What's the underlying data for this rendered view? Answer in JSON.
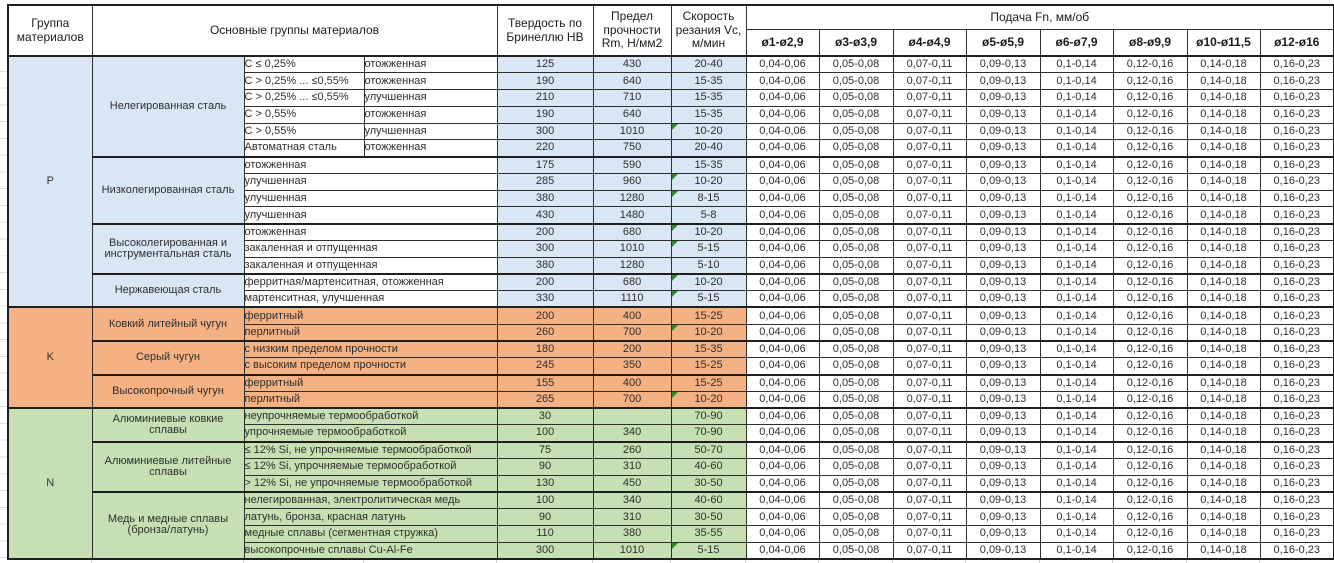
{
  "table": {
    "headers": {
      "group": "Группа материалов",
      "main_groups": "Основные группы материалов",
      "hardness": "Твердость по Бринеллю HB",
      "strength": "Предел прочности Rm, Н/мм2",
      "speed": "Скорость резания Vc, м/мин",
      "feed": "Подача Fn, мм/об",
      "feed_diameters": [
        "ø1-ø2,9",
        "ø3-ø3,9",
        "ø4-ø4,9",
        "ø5-ø5,9",
        "ø6-ø7,9",
        "ø8-ø9,9",
        "ø10-ø11,5",
        "ø12-ø16"
      ]
    },
    "feed_values": [
      "0,04-0,06",
      "0,05-0,08",
      "0,07-0,11",
      "0,09-0,13",
      "0,1-0,14",
      "0,12-0,16",
      "0,14-0,18",
      "0,16-0,23"
    ],
    "colors": {
      "group_p_fill": "#D9E7F5",
      "group_k_fill": "#F4B183",
      "group_n_fill": "#C6E0B4",
      "marker_green": "#2D8A2D",
      "white": "#FFFFFF"
    },
    "groups": [
      {
        "code": "P",
        "fill": "#D9E7F5",
        "white_condition_cells": true,
        "subgroups": [
          {
            "name": "Нелегированная сталь",
            "rows": [
              {
                "condition": [
                  "C ≤ 0,25%",
                  "отожженная"
                ],
                "hb": "125",
                "rm": "430",
                "vc": "20-40",
                "marker": false
              },
              {
                "condition": [
                  "C > 0,25% ... ≤0,55%",
                  "отожженная"
                ],
                "hb": "190",
                "rm": "640",
                "vc": "15-35",
                "marker": false
              },
              {
                "condition": [
                  "C > 0,25% ... ≤0,55%",
                  "улучшенная"
                ],
                "hb": "210",
                "rm": "710",
                "vc": "15-35",
                "marker": false
              },
              {
                "condition": [
                  "C > 0,55%",
                  "отожженная"
                ],
                "hb": "190",
                "rm": "640",
                "vc": "15-35",
                "marker": false
              },
              {
                "condition": [
                  "C > 0,55%",
                  "улучшенная"
                ],
                "hb": "300",
                "rm": "1010",
                "vc": "10-20",
                "marker": true
              },
              {
                "condition": [
                  "Автоматная сталь",
                  "отожженная"
                ],
                "hb": "220",
                "rm": "750",
                "vc": "20-40",
                "marker": false
              }
            ]
          },
          {
            "name": "Низколегированная сталь",
            "rows": [
              {
                "condition": [
                  "отожженная"
                ],
                "hb": "175",
                "rm": "590",
                "vc": "15-35",
                "marker": false
              },
              {
                "condition": [
                  "улучшенная"
                ],
                "hb": "285",
                "rm": "960",
                "vc": "10-20",
                "marker": true
              },
              {
                "condition": [
                  "улучшенная"
                ],
                "hb": "380",
                "rm": "1280",
                "vc": "8-15",
                "marker": true
              },
              {
                "condition": [
                  "улучшенная"
                ],
                "hb": "430",
                "rm": "1480",
                "vc": "5-8",
                "marker": false
              }
            ]
          },
          {
            "name": "Высоколегированная и инструментальная сталь",
            "rows": [
              {
                "condition": [
                  "отожженная"
                ],
                "hb": "200",
                "rm": "680",
                "vc": "10-20",
                "marker": true
              },
              {
                "condition": [
                  "закаленная и отпущенная"
                ],
                "hb": "300",
                "rm": "1010",
                "vc": "5-15",
                "marker": true
              },
              {
                "condition": [
                  "закаленная и отпущенная"
                ],
                "hb": "380",
                "rm": "1280",
                "vc": "5-10",
                "marker": false
              }
            ]
          },
          {
            "name": "Нержавеющая сталь",
            "rows": [
              {
                "condition": [
                  "ферритная/мартенситная, отожженная"
                ],
                "hb": "200",
                "rm": "680",
                "vc": "10-20",
                "marker": true
              },
              {
                "condition": [
                  "мартенситная, улучшенная"
                ],
                "hb": "330",
                "rm": "1110",
                "vc": "5-15",
                "marker": true
              }
            ]
          }
        ]
      },
      {
        "code": "K",
        "fill": "#F4B183",
        "white_condition_cells": false,
        "subgroups": [
          {
            "name": "Ковкий литейный чугун",
            "rows": [
              {
                "condition": [
                  "ферритный"
                ],
                "hb": "200",
                "rm": "400",
                "vc": "15-25",
                "marker": false
              },
              {
                "condition": [
                  "перлитный"
                ],
                "hb": "260",
                "rm": "700",
                "vc": "10-20",
                "marker": true
              }
            ]
          },
          {
            "name": "Серый чугун",
            "rows": [
              {
                "condition": [
                  "с низким пределом прочности"
                ],
                "hb": "180",
                "rm": "200",
                "vc": "15-35",
                "marker": false
              },
              {
                "condition": [
                  "с высоким пределом прочности"
                ],
                "hb": "245",
                "rm": "350",
                "vc": "15-25",
                "marker": false
              }
            ]
          },
          {
            "name": "Высокопрочный чугун",
            "rows": [
              {
                "condition": [
                  "ферритный"
                ],
                "hb": "155",
                "rm": "400",
                "vc": "15-25",
                "marker": false
              },
              {
                "condition": [
                  "перлитный"
                ],
                "hb": "265",
                "rm": "700",
                "vc": "10-20",
                "marker": true
              }
            ]
          }
        ]
      },
      {
        "code": "N",
        "fill": "#C6E0B4",
        "white_condition_cells": false,
        "subgroups": [
          {
            "name": "Алюминиевые ковкие сплавы",
            "rows": [
              {
                "condition": [
                  "неупрочняемые термообработкой"
                ],
                "hb": "30",
                "rm": "",
                "vc": "70-90",
                "marker": false
              },
              {
                "condition": [
                  "упрочняемые термообработкой"
                ],
                "hb": "100",
                "rm": "340",
                "vc": "70-90",
                "marker": false
              }
            ]
          },
          {
            "name": "Алюминиевые литейные сплавы",
            "rows": [
              {
                "condition": [
                  "≤ 12% Si, не упрочняемые термообработкой"
                ],
                "hb": "75",
                "rm": "260",
                "vc": "50-70",
                "marker": false
              },
              {
                "condition": [
                  "≤ 12% Si, упрочняемые термообработкой"
                ],
                "hb": "90",
                "rm": "310",
                "vc": "40-60",
                "marker": false
              },
              {
                "condition": [
                  "> 12% Si, не упрочняемые термообработкой"
                ],
                "hb": "130",
                "rm": "450",
                "vc": "30-50",
                "marker": false
              }
            ]
          },
          {
            "name": "Медь и медные сплавы (бронза/латунь)",
            "rows": [
              {
                "condition": [
                  "нелегированная, электролитическая медь"
                ],
                "hb": "100",
                "rm": "340",
                "vc": "40-60",
                "marker": false
              },
              {
                "condition": [
                  "латунь, бронза, красная латунь"
                ],
                "hb": "90",
                "rm": "310",
                "vc": "30-50",
                "marker": false
              },
              {
                "condition": [
                  "медные сплавы (сегментная стружка)"
                ],
                "hb": "110",
                "rm": "380",
                "vc": "35-55",
                "marker": false
              },
              {
                "condition": [
                  "высокопрочные сплавы Cu-Al-Fe"
                ],
                "hb": "300",
                "rm": "1010",
                "vc": "5-15",
                "marker": true
              }
            ]
          }
        ]
      }
    ]
  }
}
